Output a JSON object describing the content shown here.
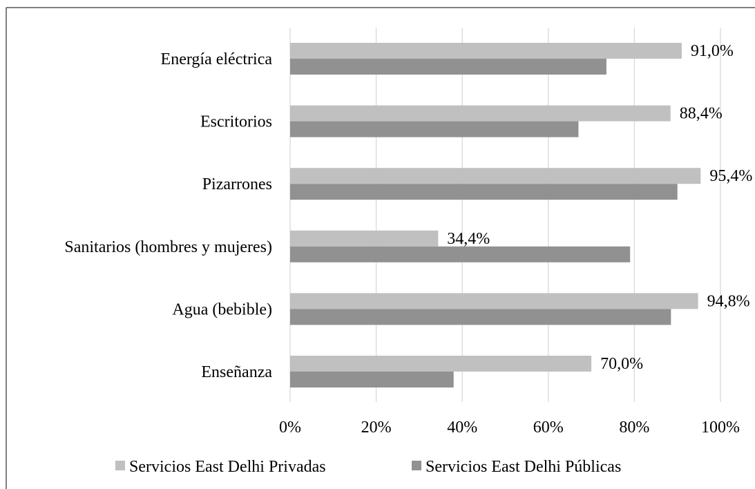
{
  "chart_data": {
    "type": "bar",
    "orientation": "horizontal",
    "categories": [
      "Energía eléctrica",
      "Escritorios",
      "Pizarrones",
      "Sanitarios (hombres y mujeres)",
      "Agua (bebible)",
      "Enseñanza"
    ],
    "series": [
      {
        "name": "Servicios East Delhi Privadas",
        "values": [
          91.0,
          88.4,
          95.4,
          34.4,
          94.8,
          70.0
        ],
        "data_labels": [
          "91,0%",
          "88,4%",
          "95,4%",
          "34,4%",
          "94,8%",
          "70,0%"
        ],
        "color": "#c0c0c0"
      },
      {
        "name": "Servicios East Delhi Públicas",
        "values": [
          73.5,
          67.0,
          90.0,
          79.0,
          88.5,
          38.0
        ],
        "color": "#919191"
      }
    ],
    "xlim": [
      0,
      100
    ],
    "x_ticks": [
      "0%",
      "20%",
      "40%",
      "60%",
      "80%",
      "100%"
    ],
    "grid": true,
    "legend_position": "bottom"
  }
}
